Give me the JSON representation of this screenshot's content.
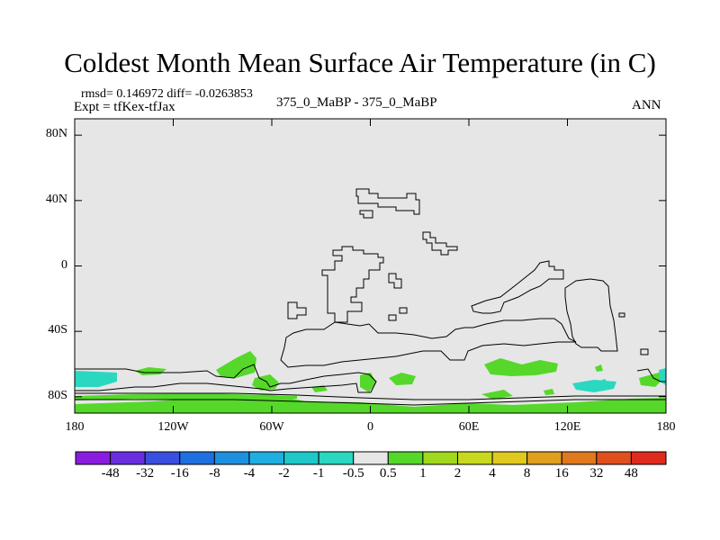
{
  "title": "Coldest Month Mean Surface Air Temperature (in C)",
  "stats": "rmsd= 0.146972 diff= -0.0263853",
  "experiment": "Expt = tfKex-tfJax",
  "center_label": "375_0_MaBP - 375_0_MaBP",
  "season": "ANN",
  "y_axis": {
    "ticks": [
      {
        "label": "80N",
        "lat": 80
      },
      {
        "label": "40N",
        "lat": 40
      },
      {
        "label": "0",
        "lat": 0
      },
      {
        "label": "40S",
        "lat": -40
      },
      {
        "label": "80S",
        "lat": -80
      }
    ],
    "range": [
      -90,
      90
    ]
  },
  "x_axis": {
    "ticks": [
      {
        "label": "180",
        "lon": -180
      },
      {
        "label": "120W",
        "lon": -120
      },
      {
        "label": "60W",
        "lon": -60
      },
      {
        "label": "0",
        "lon": 0
      },
      {
        "label": "60E",
        "lon": 60
      },
      {
        "label": "120E",
        "lon": 120
      },
      {
        "label": "180",
        "lon": 180
      }
    ],
    "range": [
      -180,
      180
    ]
  },
  "colorbar": {
    "labels": [
      "-48",
      "-32",
      "-16",
      "-8",
      "-4",
      "-2",
      "-1",
      "-0.5",
      "0.5",
      "1",
      "2",
      "4",
      "8",
      "16",
      "32",
      "48"
    ],
    "colors": [
      "#8a1ce0",
      "#6a2ee0",
      "#3a4fe0",
      "#1f6fe0",
      "#1e90e0",
      "#1eaee0",
      "#1ec8c8",
      "#2ad8c0",
      "#e6e6e6",
      "#55d82a",
      "#a0d81e",
      "#c8d81e",
      "#e0c81e",
      "#e0a01e",
      "#e0781e",
      "#e0501e",
      "#e02a1e"
    ]
  },
  "map": {
    "background_color": "#e6e6e6",
    "field_colors": {
      "positive_small": "#55d82a",
      "negative_small": "#2ad8c0"
    }
  }
}
